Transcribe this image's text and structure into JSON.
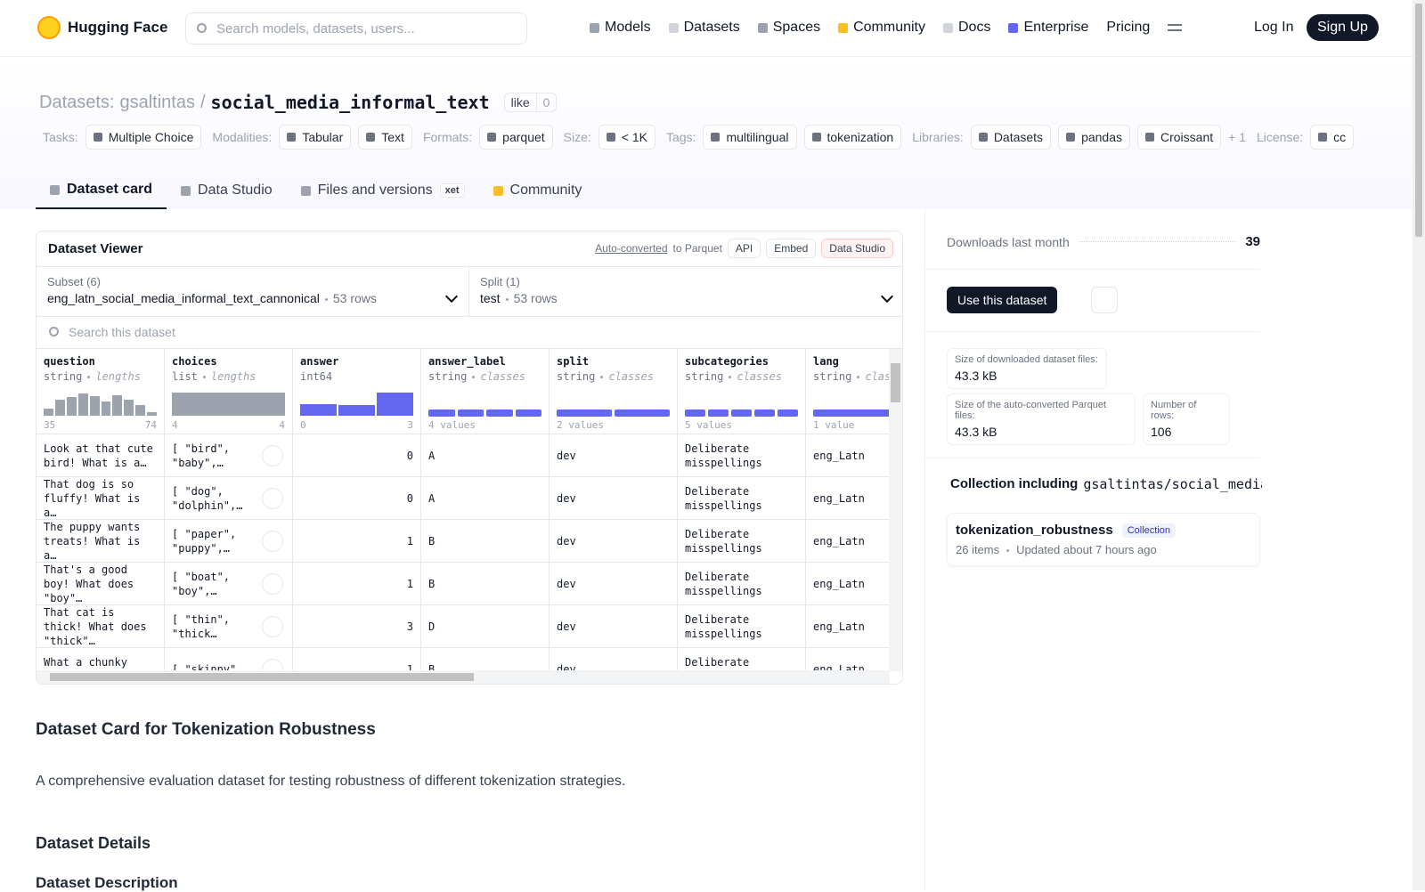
{
  "nav": {
    "brand": "Hugging Face",
    "search_placeholder": "Search models, datasets, users...",
    "links": [
      "Models",
      "Datasets",
      "Spaces",
      "Community",
      "Docs",
      "Enterprise",
      "Pricing"
    ],
    "login": "Log In",
    "signup": "Sign Up"
  },
  "header": {
    "prefix": "Datasets:",
    "owner": "gsaltintas",
    "separator": "/",
    "name": "social_media_informal_text",
    "like": "like",
    "like_count": 0,
    "tags": [
      {
        "label": "Tasks:",
        "items": [
          "Multiple Choice"
        ]
      },
      {
        "label": "Modalities:",
        "items": [
          "Tabular",
          "Text"
        ]
      },
      {
        "label": "Formats:",
        "items": [
          "parquet"
        ]
      },
      {
        "label": "Size:",
        "items": [
          "< 1K"
        ]
      },
      {
        "label": "Tags:",
        "items": [
          "multilingual",
          "tokenization"
        ]
      },
      {
        "label": "Libraries:",
        "items": [
          "Datasets",
          "pandas",
          "Croissant"
        ],
        "more": "+ 1"
      },
      {
        "label": "License:",
        "items": [
          "cc"
        ]
      }
    ]
  },
  "tabs": {
    "items": [
      "Dataset card",
      "Data Studio",
      "Files and versions",
      "Community"
    ],
    "badge": "xet"
  },
  "viewer": {
    "title": "Dataset Viewer",
    "auto_converted": "Auto-converted",
    "to_parquet": "to Parquet",
    "buttons": [
      "API",
      "Embed",
      "Data Studio"
    ],
    "subset": {
      "label": "Subset (6)",
      "value": "eng_latn_social_media_informal_text_cannonical",
      "rows": "53 rows"
    },
    "split": {
      "label": "Split (1)",
      "value": "test",
      "rows": "53 rows"
    },
    "search": "Search this dataset",
    "columns": [
      {
        "name": "question",
        "type": "string",
        "kind": "lengths",
        "min": "35",
        "max": "74"
      },
      {
        "name": "choices",
        "type": "list",
        "kind": "lengths",
        "min": "4",
        "max": "4"
      },
      {
        "name": "answer",
        "type": "int64",
        "min": "0",
        "max": "3"
      },
      {
        "name": "answer_label",
        "type": "string",
        "kind": "classes",
        "summary": "4 values"
      },
      {
        "name": "split",
        "type": "string",
        "kind": "classes",
        "summary": "2 values"
      },
      {
        "name": "subcategories",
        "type": "string",
        "kind": "classes",
        "summary": "5 values"
      },
      {
        "name": "lang",
        "type": "string",
        "kind": "classes",
        "summary": "1 value"
      }
    ],
    "rows": [
      [
        "Look at that cute bird! What is a…",
        "[ \"bird\", \"baby\",…",
        0,
        "A",
        "dev",
        "Deliberate misspellings",
        "eng_Latn"
      ],
      [
        "That dog is so fluffy! What is a…",
        "[ \"dog\", \"dolphin\",…",
        0,
        "A",
        "dev",
        "Deliberate misspellings",
        "eng_Latn"
      ],
      [
        "The puppy wants treats! What is a…",
        "[ \"paper\", \"puppy\",…",
        1,
        "B",
        "dev",
        "Deliberate misspellings",
        "eng_Latn"
      ],
      [
        "That's a good boy! What does \"boy\"…",
        "[ \"boat\", \"boy\",…",
        1,
        "B",
        "dev",
        "Deliberate misspellings",
        "eng_Latn"
      ],
      [
        "That cat is thick! What does \"thick\"…",
        "[ \"thin\", \"thick…",
        3,
        "D",
        "dev",
        "Deliberate misspellings",
        "eng_Latn"
      ],
      [
        "What a chunky cat!",
        "[ \"skinny\",",
        1,
        "B",
        "dev",
        "Deliberate misspellings",
        "eng_Latn"
      ]
    ]
  },
  "card": {
    "title": "Dataset Card for Tokenization Robustness",
    "description": "A comprehensive evaluation dataset for testing robustness of different tokenization strategies.",
    "details": "Dataset Details",
    "description_heading": "Dataset Description"
  },
  "sidebar": {
    "downloads_label": "Downloads last month",
    "downloads": 39,
    "use_button": "Use this dataset",
    "stats": [
      {
        "label": "Size of downloaded dataset files:",
        "value": "43.3 kB"
      },
      {
        "label": "Size of the auto-converted Parquet files:",
        "value": "43.3 kB"
      },
      {
        "label": "Number of rows:",
        "value": "106"
      }
    ],
    "collection_heading": "Collection including",
    "collection_path": "gsaltintas/social_media_...",
    "collection": {
      "name": "tokenization_robustness",
      "badge": "Collection",
      "items": "26 items",
      "updated": "Updated about 7 hours ago"
    }
  }
}
